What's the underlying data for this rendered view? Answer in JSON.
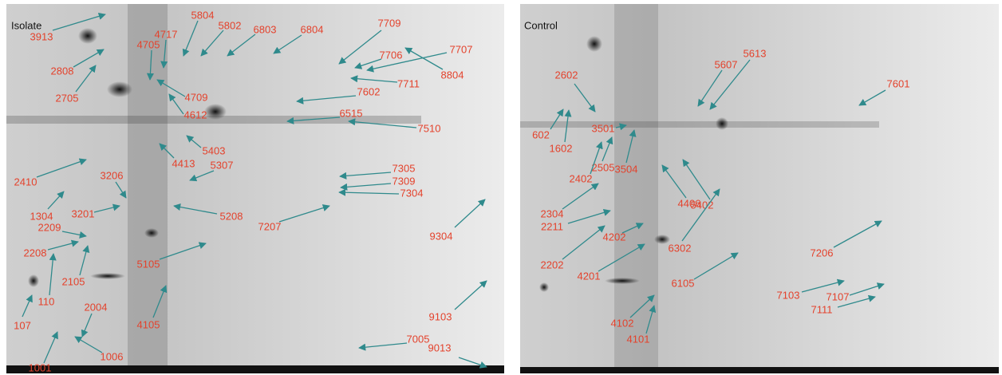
{
  "panels": [
    {
      "title": "Isolate",
      "spots": [
        "3913",
        "5804",
        "4717",
        "4705",
        "5802",
        "6803",
        "6804",
        "7709",
        "7706",
        "7707",
        "8804",
        "7711",
        "2808",
        "2705",
        "4709",
        "4612",
        "7602",
        "6515",
        "7510",
        "5403",
        "4413",
        "5307",
        "2410",
        "3206",
        "7305",
        "7309",
        "7304",
        "1304",
        "3201",
        "5208",
        "7207",
        "9304",
        "2209",
        "2208",
        "2105",
        "5105",
        "110",
        "107",
        "2004",
        "4105",
        "9103",
        "1006",
        "7005",
        "9013",
        "1001"
      ]
    },
    {
      "title": "Control",
      "spots": [
        "5613",
        "5607",
        "2602",
        "7601",
        "602",
        "3501",
        "1602",
        "2505",
        "3504",
        "2402",
        "4406",
        "5402",
        "2304",
        "2211",
        "4202",
        "6302",
        "7206",
        "2202",
        "4201",
        "6105",
        "7103",
        "7107",
        "7111",
        "4102",
        "4101"
      ]
    }
  ]
}
